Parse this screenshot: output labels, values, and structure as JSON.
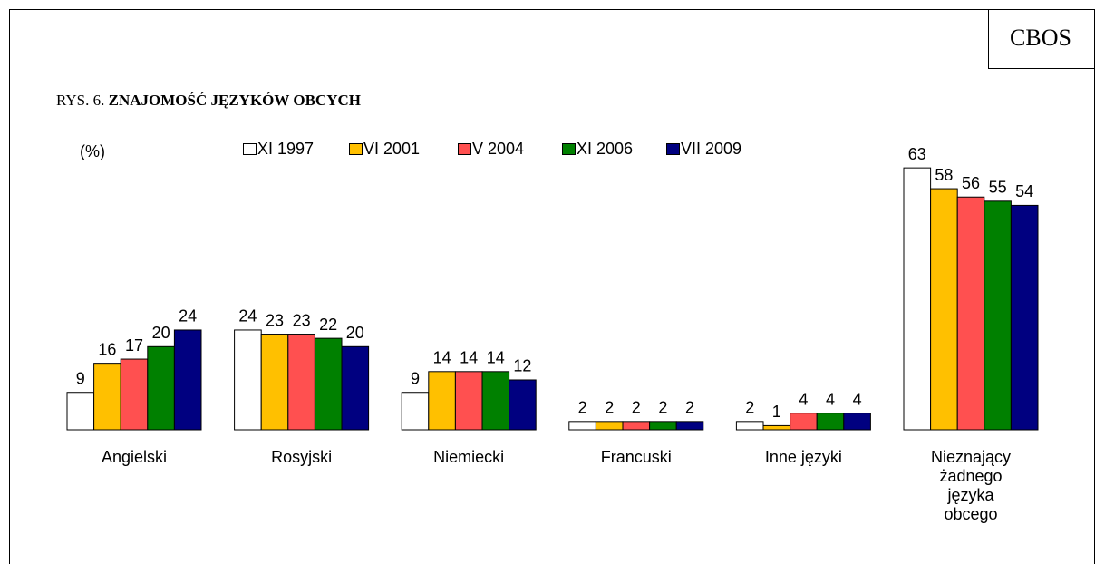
{
  "chart_data": {
    "type": "bar",
    "brand": "CBOS",
    "title_prefix": "RYS. 6.",
    "title": "ZNAJOMOŚĆ JĘZYKÓW OBCYCH",
    "unit_label": "(%)",
    "categories": [
      "Angielski",
      "Rosyjski",
      "Niemiecki",
      "Francuski",
      "Inne języki",
      "Nieznający\nżadnego\njęzyka\nobcego"
    ],
    "series": [
      {
        "name": "XI 1997",
        "color": "#ffffff",
        "values": [
          9,
          24,
          9,
          2,
          2,
          63
        ]
      },
      {
        "name": "VI 2001",
        "color": "#ffc000",
        "values": [
          16,
          23,
          14,
          2,
          1,
          58
        ]
      },
      {
        "name": "V 2004",
        "color": "#ff5050",
        "values": [
          17,
          23,
          14,
          2,
          4,
          56
        ]
      },
      {
        "name": "XI 2006",
        "color": "#008000",
        "values": [
          20,
          22,
          14,
          2,
          4,
          55
        ]
      },
      {
        "name": "VII 2009",
        "color": "#000080",
        "values": [
          24,
          20,
          12,
          2,
          4,
          54
        ]
      }
    ],
    "ylim": [
      0,
      70
    ]
  }
}
